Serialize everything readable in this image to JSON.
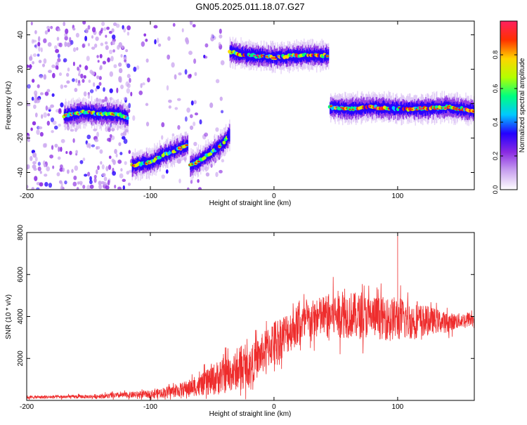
{
  "title": "GN05.2025.011.18.07.G27",
  "chart_data": [
    {
      "type": "heatmap",
      "xlabel": "Height of straight line (km)",
      "ylabel": "Frequency (Hz)",
      "xlim": [
        -200,
        162
      ],
      "ylim": [
        -50,
        48
      ],
      "xticks": [
        -200,
        -100,
        0,
        100
      ],
      "yticks": [
        -40,
        -20,
        0,
        20,
        40
      ],
      "colorbar": {
        "label": "Normalized spectral amplitude",
        "range": [
          0,
          1
        ],
        "ticks": [
          "0.0",
          "0.2",
          "0.4",
          "0.6",
          "0.8"
        ],
        "tick_values": [
          0,
          0.2,
          0.4,
          0.6,
          0.8
        ],
        "colors": [
          "#ffffff",
          "#c9a3ef",
          "#8a2be2",
          "#2400ff",
          "#00c8ff",
          "#00ff7f",
          "#b4ff00",
          "#ffd400",
          "#ff3000",
          "#ff2060"
        ]
      },
      "features": [
        {
          "kind": "background_noise",
          "x_range": [
            -200,
            -115
          ],
          "y_range": [
            -50,
            48
          ],
          "intensity": 0.45
        },
        {
          "kind": "background_noise",
          "x_range": [
            -115,
            -40
          ],
          "y_range": [
            -50,
            48
          ],
          "intensity": 0.12
        },
        {
          "kind": "ridge",
          "x": [
            -170,
            -155,
            -140,
            -125,
            -118
          ],
          "y": [
            -7,
            -5,
            -6,
            -6,
            -9
          ],
          "amplitude": 0.5
        },
        {
          "kind": "ridge",
          "x": [
            -115,
            -100,
            -90,
            -80,
            -70
          ],
          "y": [
            -36,
            -34,
            -30,
            -27,
            -24
          ],
          "amplitude": 0.55
        },
        {
          "kind": "ridge",
          "x": [
            -68,
            -60,
            -50,
            -40,
            -36
          ],
          "y": [
            -36,
            -33,
            -28,
            -22,
            -18
          ],
          "amplitude": 0.5
        },
        {
          "kind": "ridge",
          "x": [
            -36,
            -20,
            0,
            20,
            44
          ],
          "y": [
            30,
            28,
            27,
            28,
            28
          ],
          "amplitude": 0.8
        },
        {
          "kind": "ridge",
          "x": [
            45,
            60,
            80,
            100,
            120,
            140,
            162
          ],
          "y": [
            -2,
            -3,
            -2,
            -3,
            -3,
            -2,
            -4
          ],
          "amplitude": 0.85
        }
      ]
    },
    {
      "type": "line",
      "xlabel": "Height of straight line (km)",
      "ylabel": "SNR (10 * v/v)",
      "xlim": [
        -200,
        162
      ],
      "ylim": [
        0,
        8000
      ],
      "xticks": [
        -200,
        -100,
        0,
        100
      ],
      "yticks": [
        2000,
        4000,
        6000,
        8000
      ],
      "color": "#ee2c2c",
      "envelope": {
        "x": [
          -200,
          -150,
          -100,
          -80,
          -60,
          -45,
          -35,
          -20,
          -10,
          0,
          10,
          20,
          30,
          40,
          50,
          60,
          70,
          80,
          90,
          100,
          110,
          120,
          130,
          140,
          150,
          162
        ],
        "mean": [
          150,
          180,
          300,
          450,
          700,
          1100,
          1300,
          1600,
          2200,
          2800,
          3200,
          3600,
          3800,
          4000,
          4100,
          4100,
          4000,
          4000,
          3900,
          3900,
          3800,
          3800,
          3800,
          3700,
          3800,
          3900
        ],
        "amp": [
          120,
          150,
          300,
          500,
          800,
          1400,
          1500,
          1500,
          1600,
          1800,
          1700,
          1600,
          1600,
          1700,
          1900,
          1900,
          1800,
          1700,
          1700,
          1800,
          1500,
          1300,
          1000,
          800,
          600,
          600
        ]
      },
      "peak": {
        "x": 100,
        "y": 8000
      }
    }
  ]
}
